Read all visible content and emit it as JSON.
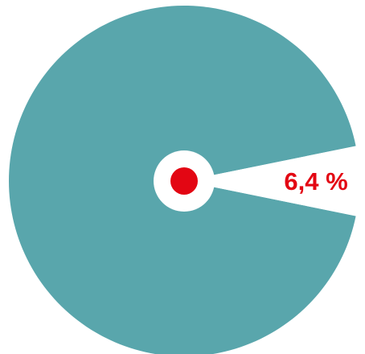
{
  "chart_data": {
    "type": "pie",
    "slices": [
      {
        "value": 93.6,
        "color": "#59a6ac",
        "label": ""
      },
      {
        "value": 6.4,
        "color": "#ffffff",
        "label": "6,4 %"
      }
    ],
    "label_color": "#e30613",
    "center_dot_color": "#e30613",
    "hole_color": "#ffffff",
    "background": "#ffffff"
  }
}
